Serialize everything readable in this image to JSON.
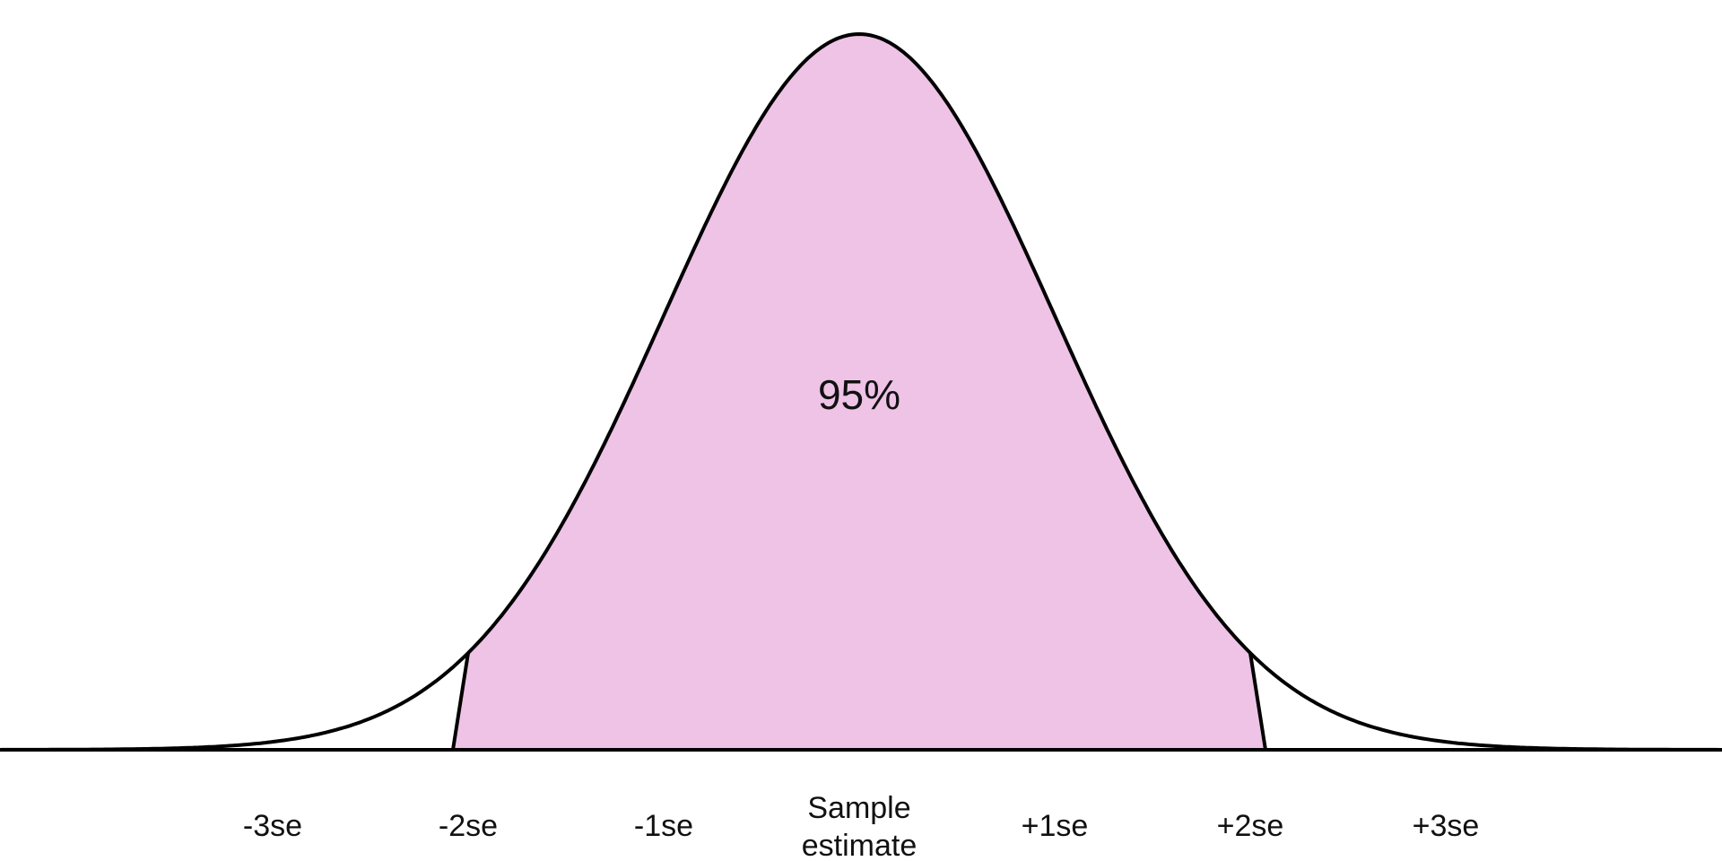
{
  "chart_data": {
    "type": "area",
    "title": "",
    "xlabel": "",
    "ylabel": "",
    "distribution": "normal",
    "mean": 0,
    "sd": 1,
    "xlim": [
      -4.4,
      4.4
    ],
    "shaded_interval": [
      -2,
      2
    ],
    "shaded_label": "95%",
    "shade_color": "#EEC3E6",
    "line_color": "#000000",
    "ticks": [
      {
        "x": -3,
        "label": "-3se"
      },
      {
        "x": -2,
        "label": "-2se"
      },
      {
        "x": -1,
        "label": "-1se"
      },
      {
        "x": 0,
        "label": "Sample estimate"
      },
      {
        "x": 1,
        "label": "+1se"
      },
      {
        "x": 2,
        "label": "+2se"
      },
      {
        "x": 3,
        "label": "+3se"
      }
    ]
  }
}
